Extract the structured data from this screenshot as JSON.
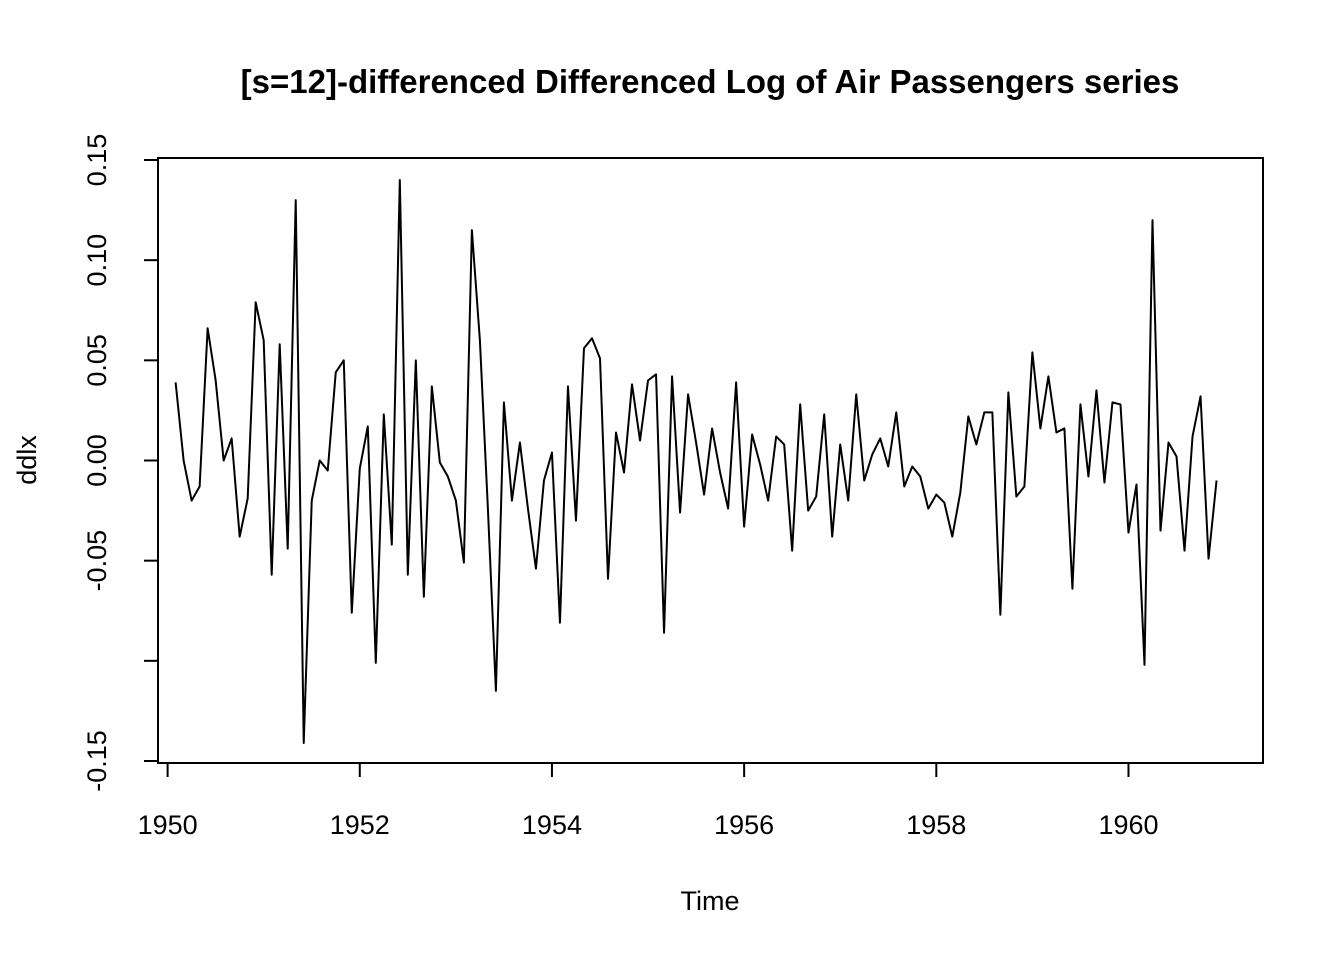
{
  "chart_data": {
    "type": "line",
    "title": "[s=12]-differenced Differenced Log of Air Passengers series",
    "xlabel": "Time",
    "ylabel": "ddlx",
    "xlim": [
      1949.9,
      1961.4
    ],
    "ylim": [
      -0.151,
      0.151
    ],
    "x_ticks": [
      1950,
      1952,
      1954,
      1956,
      1958,
      1960
    ],
    "x_tick_labels": [
      "1950",
      "1952",
      "1954",
      "1956",
      "1958",
      "1960"
    ],
    "y_ticks": [
      -0.15,
      -0.1,
      -0.05,
      0.0,
      0.05,
      0.1,
      0.15
    ],
    "y_tick_labels": [
      "-0.15",
      "",
      "-0.05",
      "0.00",
      "0.05",
      "0.10",
      "0.15"
    ],
    "grid": false,
    "legend": "none",
    "series": [
      {
        "x_start": 1950.0833,
        "x_step": 0.083333,
        "values": [
          0.039,
          0.0,
          -0.02,
          -0.013,
          0.066,
          0.04,
          0.0,
          0.011,
          -0.038,
          -0.019,
          0.079,
          0.06,
          -0.057,
          0.058,
          -0.044,
          0.13,
          -0.141,
          -0.02,
          0.0,
          -0.005,
          0.044,
          0.05,
          -0.076,
          -0.004,
          0.017,
          -0.101,
          0.023,
          -0.042,
          0.14,
          -0.057,
          0.05,
          -0.068,
          0.037,
          -0.001,
          -0.008,
          -0.02,
          -0.051,
          0.115,
          0.06,
          -0.024,
          -0.115,
          0.029,
          -0.02,
          0.009,
          -0.024,
          -0.054,
          -0.01,
          0.004,
          -0.081,
          0.037,
          -0.03,
          0.056,
          0.061,
          0.051,
          -0.059,
          0.014,
          -0.006,
          0.038,
          0.01,
          0.04,
          0.043,
          -0.086,
          0.042,
          -0.026,
          0.033,
          0.009,
          -0.017,
          0.016,
          -0.006,
          -0.024,
          0.039,
          -0.033,
          0.013,
          -0.002,
          -0.02,
          0.012,
          0.008,
          -0.045,
          0.028,
          -0.025,
          -0.018,
          0.023,
          -0.038,
          0.008,
          -0.02,
          0.033,
          -0.01,
          0.003,
          0.011,
          -0.003,
          0.024,
          -0.013,
          -0.003,
          -0.008,
          -0.024,
          -0.017,
          -0.021,
          -0.038,
          -0.016,
          0.022,
          0.008,
          0.024,
          0.024,
          -0.077,
          0.034,
          -0.018,
          -0.013,
          0.054,
          0.016,
          0.042,
          0.014,
          0.016,
          -0.064,
          0.028,
          -0.008,
          0.035,
          -0.011,
          0.029,
          0.028,
          -0.036,
          -0.012,
          -0.102,
          0.12,
          -0.035,
          0.009,
          0.002,
          -0.045,
          0.012,
          0.032,
          -0.049,
          -0.01
        ]
      }
    ]
  }
}
